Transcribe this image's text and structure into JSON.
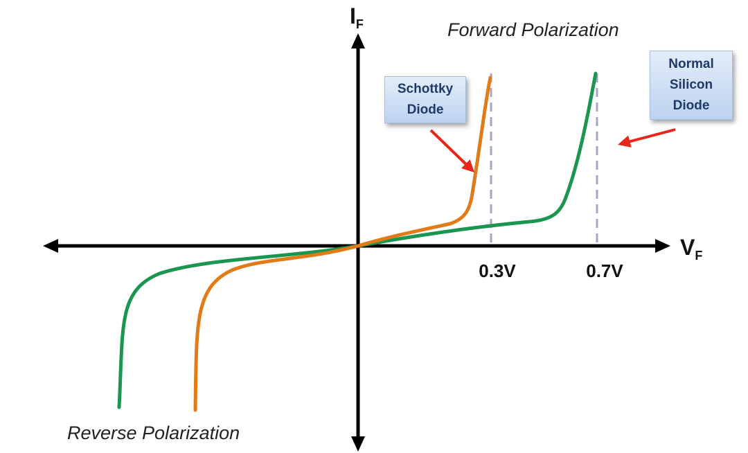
{
  "axes": {
    "y_label_main": "I",
    "y_label_sub": "F",
    "x_label_main": "V",
    "x_label_sub": "F"
  },
  "ticks": {
    "schottky_voltage": "0.3V",
    "silicon_voltage": "0.7V"
  },
  "regions": {
    "forward": "Forward Polarization",
    "reverse": "Reverse Polarization"
  },
  "callouts": {
    "schottky_line1": "Schottky",
    "schottky_line2": "Diode",
    "silicon_line1": "Normal",
    "silicon_line2": "Silicon",
    "silicon_line3": "Diode"
  },
  "colors": {
    "schottky_curve": "#e07b18",
    "silicon_curve": "#1a9650",
    "axes": "#000000",
    "arrows": "#e8261a",
    "threshold_lines": "#a9a4c4"
  }
}
